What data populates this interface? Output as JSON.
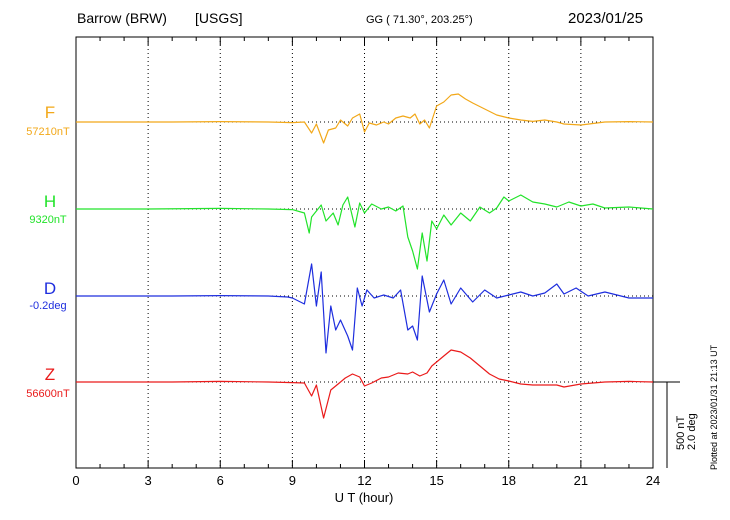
{
  "header": {
    "station": "Barrow (BRW)",
    "network": "[USGS]",
    "coords": "GG ( 71.30°, 203.25°)",
    "date": "2023/01/25"
  },
  "footer": {
    "plotted": "Plotted at 2023/01/31 21:13 UT"
  },
  "chart_data": {
    "type": "line",
    "xlabel": "U T (hour)",
    "xlim": [
      0,
      24
    ],
    "xticks": [
      "0",
      "3",
      "6",
      "9",
      "12",
      "15",
      "18",
      "21",
      "24"
    ],
    "grid": true,
    "scale_bar": {
      "line1": "500 nT",
      "line2": "2.0 deg"
    },
    "series": [
      {
        "name": "F",
        "baseline": "57210nT",
        "color": "#f2a819",
        "points": [
          [
            0,
            0
          ],
          [
            2,
            0
          ],
          [
            4,
            0
          ],
          [
            6,
            2
          ],
          [
            8,
            0
          ],
          [
            9,
            -3
          ],
          [
            9.5,
            0
          ],
          [
            9.8,
            -55
          ],
          [
            10,
            -10
          ],
          [
            10.3,
            -105
          ],
          [
            10.5,
            -40
          ],
          [
            10.8,
            -30
          ],
          [
            11,
            10
          ],
          [
            11.3,
            -20
          ],
          [
            11.5,
            20
          ],
          [
            11.8,
            40
          ],
          [
            12,
            -50
          ],
          [
            12.2,
            -5
          ],
          [
            12.5,
            -15
          ],
          [
            12.8,
            0
          ],
          [
            13,
            -10
          ],
          [
            13.3,
            20
          ],
          [
            13.6,
            30
          ],
          [
            13.9,
            20
          ],
          [
            14.1,
            40
          ],
          [
            14.3,
            -10
          ],
          [
            14.5,
            10
          ],
          [
            14.7,
            -30
          ],
          [
            15,
            80
          ],
          [
            15.3,
            100
          ],
          [
            15.6,
            135
          ],
          [
            15.9,
            140
          ],
          [
            16.2,
            115
          ],
          [
            16.5,
            95
          ],
          [
            17,
            65
          ],
          [
            17.5,
            35
          ],
          [
            18,
            20
          ],
          [
            18.5,
            10
          ],
          [
            19,
            3
          ],
          [
            19.5,
            10
          ],
          [
            20,
            0
          ],
          [
            20.3,
            -10
          ],
          [
            21,
            -15
          ],
          [
            22,
            0
          ],
          [
            23,
            2
          ],
          [
            24,
            0
          ]
        ]
      },
      {
        "name": "H",
        "baseline": "9320nT",
        "color": "#22e32a",
        "points": [
          [
            0,
            0
          ],
          [
            3,
            0
          ],
          [
            6,
            3
          ],
          [
            8,
            0
          ],
          [
            9,
            -3
          ],
          [
            9.5,
            -20
          ],
          [
            9.7,
            -120
          ],
          [
            9.8,
            -40
          ],
          [
            10,
            -10
          ],
          [
            10.2,
            20
          ],
          [
            10.4,
            -60
          ],
          [
            10.7,
            -20
          ],
          [
            10.9,
            -80
          ],
          [
            11.1,
            20
          ],
          [
            11.3,
            60
          ],
          [
            11.5,
            -40
          ],
          [
            11.6,
            -90
          ],
          [
            11.8,
            30
          ],
          [
            12,
            -20
          ],
          [
            12.3,
            25
          ],
          [
            12.7,
            0
          ],
          [
            13,
            10
          ],
          [
            13.3,
            -10
          ],
          [
            13.6,
            15
          ],
          [
            13.8,
            -140
          ],
          [
            14,
            -210
          ],
          [
            14.2,
            -300
          ],
          [
            14.4,
            -120
          ],
          [
            14.6,
            -260
          ],
          [
            14.8,
            -60
          ],
          [
            15,
            -100
          ],
          [
            15.3,
            -30
          ],
          [
            15.6,
            -80
          ],
          [
            16,
            -20
          ],
          [
            16.4,
            -60
          ],
          [
            16.8,
            10
          ],
          [
            17.2,
            -20
          ],
          [
            17.5,
            5
          ],
          [
            17.8,
            60
          ],
          [
            18,
            40
          ],
          [
            18.5,
            70
          ],
          [
            19,
            35
          ],
          [
            19.5,
            25
          ],
          [
            20,
            10
          ],
          [
            20.5,
            35
          ],
          [
            21,
            15
          ],
          [
            21.5,
            25
          ],
          [
            22,
            5
          ],
          [
            23,
            10
          ],
          [
            24,
            0
          ]
        ]
      },
      {
        "name": "D",
        "baseline": "-0.2deg",
        "color": "#1e2ede",
        "points": [
          [
            0,
            0
          ],
          [
            4,
            0
          ],
          [
            6,
            2
          ],
          [
            8,
            0
          ],
          [
            8.8,
            -5
          ],
          [
            9,
            -10
          ],
          [
            9.5,
            -40
          ],
          [
            9.8,
            160
          ],
          [
            10,
            -50
          ],
          [
            10.2,
            120
          ],
          [
            10.4,
            -285
          ],
          [
            10.6,
            -50
          ],
          [
            10.8,
            -170
          ],
          [
            11,
            -120
          ],
          [
            11.3,
            -200
          ],
          [
            11.5,
            -270
          ],
          [
            11.7,
            40
          ],
          [
            11.9,
            -50
          ],
          [
            12.1,
            30
          ],
          [
            12.4,
            -10
          ],
          [
            12.8,
            5
          ],
          [
            13.2,
            -10
          ],
          [
            13.5,
            30
          ],
          [
            13.8,
            -170
          ],
          [
            14,
            -150
          ],
          [
            14.2,
            -220
          ],
          [
            14.4,
            100
          ],
          [
            14.7,
            -80
          ],
          [
            15,
            10
          ],
          [
            15.3,
            80
          ],
          [
            15.6,
            -40
          ],
          [
            16,
            40
          ],
          [
            16.5,
            -30
          ],
          [
            17,
            30
          ],
          [
            17.5,
            -10
          ],
          [
            18,
            5
          ],
          [
            18.5,
            20
          ],
          [
            19,
            0
          ],
          [
            19.5,
            15
          ],
          [
            20,
            60
          ],
          [
            20.3,
            10
          ],
          [
            20.8,
            40
          ],
          [
            21.3,
            0
          ],
          [
            22,
            20
          ],
          [
            23,
            -10
          ],
          [
            24,
            -10
          ]
        ]
      },
      {
        "name": "Z",
        "baseline": "56600nT",
        "color": "#ea1a1a",
        "points": [
          [
            0,
            0
          ],
          [
            4,
            0
          ],
          [
            6,
            3
          ],
          [
            8,
            0
          ],
          [
            9,
            -3
          ],
          [
            9.5,
            -5
          ],
          [
            9.8,
            -70
          ],
          [
            10,
            -15
          ],
          [
            10.3,
            -180
          ],
          [
            10.6,
            -40
          ],
          [
            10.9,
            -10
          ],
          [
            11.2,
            20
          ],
          [
            11.5,
            40
          ],
          [
            11.8,
            25
          ],
          [
            12,
            -20
          ],
          [
            12.3,
            -5
          ],
          [
            12.7,
            20
          ],
          [
            13,
            25
          ],
          [
            13.4,
            45
          ],
          [
            13.8,
            40
          ],
          [
            14,
            50
          ],
          [
            14.3,
            30
          ],
          [
            14.6,
            45
          ],
          [
            14.8,
            80
          ],
          [
            15,
            100
          ],
          [
            15.3,
            130
          ],
          [
            15.6,
            160
          ],
          [
            16,
            150
          ],
          [
            16.4,
            120
          ],
          [
            16.8,
            80
          ],
          [
            17.2,
            40
          ],
          [
            17.6,
            15
          ],
          [
            18,
            5
          ],
          [
            18.5,
            -10
          ],
          [
            19,
            -15
          ],
          [
            20,
            -15
          ],
          [
            20.3,
            -25
          ],
          [
            21,
            -10
          ],
          [
            22,
            0
          ],
          [
            23,
            3
          ],
          [
            24,
            0
          ]
        ]
      }
    ]
  }
}
